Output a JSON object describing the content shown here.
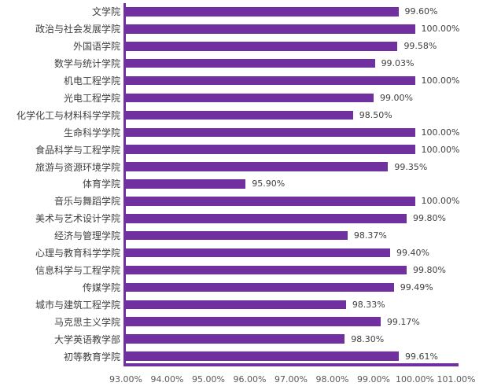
{
  "chart_data": {
    "type": "bar",
    "orientation": "horizontal",
    "title": "",
    "xlabel": "",
    "ylabel": "",
    "grid": false,
    "legend": null,
    "xlim": [
      93,
      101
    ],
    "x_ticks": [
      "93.00%",
      "94.00%",
      "95.00%",
      "96.00%",
      "97.00%",
      "98.00%",
      "99.00%",
      "100.00%",
      "101.00%"
    ],
    "categories": [
      "文学院",
      "政治与社会发展学院",
      "外国语学院",
      "数学与统计学院",
      "机电工程学院",
      "光电工程学院",
      "化学化工与材料科学学院",
      "生命科学学院",
      "食品科学与工程学院",
      "旅游与资源环境学院",
      "体育学院",
      "音乐与舞蹈学院",
      "美术与艺术设计学院",
      "经济与管理学院",
      "心理与教育科学学院",
      "信息科学与工程学院",
      "传媒学院",
      "城市与建筑工程学院",
      "马克思主义学院",
      "大学英语教学部",
      "初等教育学院"
    ],
    "values": [
      99.6,
      100.0,
      99.58,
      99.03,
      100.0,
      99.0,
      98.5,
      100.0,
      100.0,
      99.35,
      95.9,
      100.0,
      99.8,
      98.37,
      99.4,
      99.8,
      99.49,
      98.33,
      99.17,
      98.3,
      99.61
    ],
    "value_labels": [
      "99.60%",
      "100.00%",
      "99.58%",
      "99.03%",
      "100.00%",
      "99.00%",
      "98.50%",
      "100.00%",
      "100.00%",
      "99.35%",
      "95.90%",
      "100.00%",
      "99.80%",
      "98.37%",
      "99.40%",
      "99.80%",
      "99.49%",
      "98.33%",
      "99.17%",
      "98.30%",
      "99.61%"
    ],
    "colors": {
      "bar": "#7030A0",
      "axis_line": "#7030A0",
      "category_label": "#404040",
      "value_label": "#404040",
      "tick_label": "#595959"
    }
  }
}
